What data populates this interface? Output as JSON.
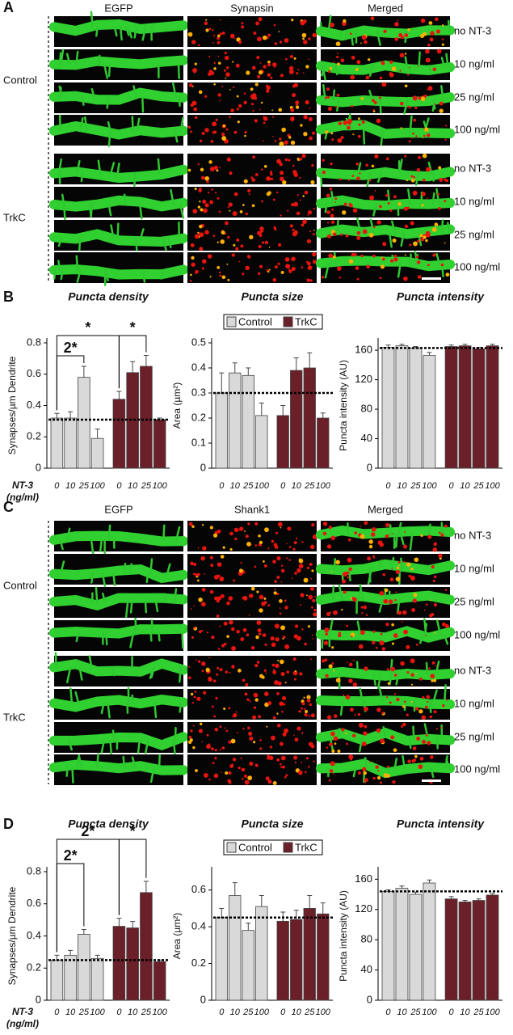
{
  "figure": {
    "panels": [
      {
        "letter": "A",
        "columns": [
          "EGFP",
          "Synapsin",
          "Merged"
        ],
        "groups": [
          "Control",
          "TrkC"
        ],
        "rows": [
          "no NT-3",
          "10 ng/ml",
          "25 ng/ml",
          "100 ng/ml",
          "no NT-3",
          "10 ng/ml",
          "25 ng/ml",
          "100 ng/ml"
        ]
      },
      {
        "letter": "B"
      },
      {
        "letter": "C",
        "columns": [
          "EGFP",
          "Shank1",
          "Merged"
        ],
        "groups": [
          "Control",
          "TrkC"
        ],
        "rows": [
          "no NT-3",
          "10 ng/ml",
          "25 ng/ml",
          "100 ng/ml",
          "no NT-3",
          "10 ng/ml",
          "25 ng/ml",
          "100 ng/ml"
        ]
      },
      {
        "letter": "D"
      }
    ]
  },
  "chart_data": [
    {
      "type": "bar",
      "title": "Puncta density",
      "ylabel": "Synapses/µm Dendrite",
      "xlabel": [
        "NT-3",
        "(ng/ml)"
      ],
      "categories": [
        "0",
        "10",
        "25",
        "100",
        "0",
        "10",
        "25",
        "100"
      ],
      "series": [
        {
          "name": "Control",
          "color": "#d9d9d9",
          "values": [
            0.32,
            0.32,
            0.58,
            0.19,
            null,
            null,
            null,
            null
          ],
          "errors": [
            0.03,
            0.04,
            0.07,
            0.06,
            null,
            null,
            null,
            null
          ]
        },
        {
          "name": "TrkC",
          "color": "#6b1f28",
          "values": [
            null,
            null,
            null,
            null,
            0.44,
            0.61,
            0.65,
            0.31
          ],
          "errors": [
            null,
            null,
            null,
            null,
            0.05,
            0.07,
            0.07,
            0.01
          ]
        }
      ],
      "ylim": [
        0,
        0.8
      ],
      "yticks": [
        0,
        0.2,
        0.4,
        0.6,
        0.8
      ],
      "reference_line": 0.31,
      "legend": false,
      "annotations": [
        "*",
        "2*",
        "*"
      ]
    },
    {
      "type": "bar",
      "title": "Puncta size",
      "ylabel": "Area (µm²)",
      "categories": [
        "0",
        "10",
        "25",
        "100",
        "0",
        "10",
        "25",
        "100"
      ],
      "series": [
        {
          "name": "Control",
          "color": "#d9d9d9",
          "values": [
            0.3,
            0.38,
            0.37,
            0.21,
            null,
            null,
            null,
            null
          ],
          "errors": [
            0.08,
            0.04,
            0.03,
            0.05,
            null,
            null,
            null,
            null
          ]
        },
        {
          "name": "TrkC",
          "color": "#6b1f28",
          "values": [
            null,
            null,
            null,
            null,
            0.21,
            0.39,
            0.4,
            0.2
          ],
          "errors": [
            null,
            null,
            null,
            null,
            0.04,
            0.05,
            0.06,
            0.02
          ]
        }
      ],
      "ylim": [
        0,
        0.5
      ],
      "yticks": [
        0,
        0.1,
        0.2,
        0.3,
        0.4,
        0.5
      ],
      "reference_line": 0.3,
      "legend": true
    },
    {
      "type": "bar",
      "title": "Puncta intensity",
      "ylabel": "Puncta intensity (AU)",
      "categories": [
        "0",
        "10",
        "25",
        "100",
        "0",
        "10",
        "25",
        "100"
      ],
      "series": [
        {
          "name": "Control",
          "color": "#d9d9d9",
          "values": [
            164,
            166,
            163,
            153,
            null,
            null,
            null,
            null
          ],
          "errors": [
            3,
            2,
            2,
            4,
            null,
            null,
            null,
            null
          ]
        },
        {
          "name": "TrkC",
          "color": "#6b1f28",
          "values": [
            null,
            null,
            null,
            null,
            165,
            166,
            162,
            166
          ],
          "errors": [
            null,
            null,
            null,
            null,
            2,
            2,
            2,
            2
          ]
        }
      ],
      "ylim": [
        0,
        170
      ],
      "yticks": [
        0,
        40,
        80,
        120,
        160
      ],
      "reference_line": 163,
      "legend": false
    },
    {
      "type": "bar",
      "title": "Puncta density",
      "ylabel": "Synapses/µm Dendrite",
      "xlabel": [
        "NT-3",
        "(ng/ml)"
      ],
      "categories": [
        "0",
        "10",
        "25",
        "100",
        "0",
        "10",
        "25",
        "100"
      ],
      "series": [
        {
          "name": "Control",
          "color": "#d9d9d9",
          "values": [
            0.25,
            0.28,
            0.41,
            0.26,
            null,
            null,
            null,
            null
          ],
          "errors": [
            0.03,
            0.03,
            0.03,
            0.02,
            null,
            null,
            null,
            null
          ]
        },
        {
          "name": "TrkC",
          "color": "#6b1f28",
          "values": [
            null,
            null,
            null,
            null,
            0.46,
            0.45,
            0.67,
            0.24
          ],
          "errors": [
            null,
            null,
            null,
            null,
            0.05,
            0.04,
            0.07,
            0.01
          ]
        }
      ],
      "ylim": [
        0,
        0.8
      ],
      "yticks": [
        0,
        0.2,
        0.4,
        0.6,
        0.8
      ],
      "reference_line": 0.25,
      "legend": false,
      "annotations": [
        "2*",
        "2*",
        "*"
      ]
    },
    {
      "type": "bar",
      "title": "Puncta size",
      "ylabel": "Area (µm²)",
      "categories": [
        "0",
        "10",
        "25",
        "100",
        "0",
        "10",
        "25",
        "100"
      ],
      "series": [
        {
          "name": "Control",
          "color": "#d9d9d9",
          "values": [
            0.45,
            0.57,
            0.38,
            0.51,
            null,
            null,
            null,
            null
          ],
          "errors": [
            0.05,
            0.07,
            0.04,
            0.06,
            null,
            null,
            null,
            null
          ]
        },
        {
          "name": "TrkC",
          "color": "#6b1f28",
          "values": [
            null,
            null,
            null,
            null,
            0.43,
            0.44,
            0.5,
            0.47
          ],
          "errors": [
            null,
            null,
            null,
            null,
            0.05,
            0.05,
            0.07,
            0.06
          ]
        }
      ],
      "ylim": [
        0,
        0.7
      ],
      "yticks": [
        0,
        0.2,
        0.4,
        0.6
      ],
      "reference_line": 0.45,
      "legend": true
    },
    {
      "type": "bar",
      "title": "Puncta intensity",
      "ylabel": "Puncta intensity (AU)",
      "categories": [
        "0",
        "10",
        "25",
        "100",
        "0",
        "10",
        "25",
        "100"
      ],
      "series": [
        {
          "name": "Control",
          "color": "#d9d9d9",
          "values": [
            144,
            148,
            140,
            155,
            null,
            null,
            null,
            null
          ],
          "errors": [
            2,
            3,
            3,
            4,
            null,
            null,
            null,
            null
          ]
        },
        {
          "name": "TrkC",
          "color": "#6b1f28",
          "values": [
            null,
            null,
            null,
            null,
            134,
            130,
            132,
            139
          ],
          "errors": [
            null,
            null,
            null,
            null,
            3,
            2,
            2,
            2
          ]
        }
      ],
      "ylim": [
        0,
        170
      ],
      "yticks": [
        0,
        40,
        80,
        120,
        160
      ],
      "reference_line": 144,
      "legend": false
    }
  ]
}
